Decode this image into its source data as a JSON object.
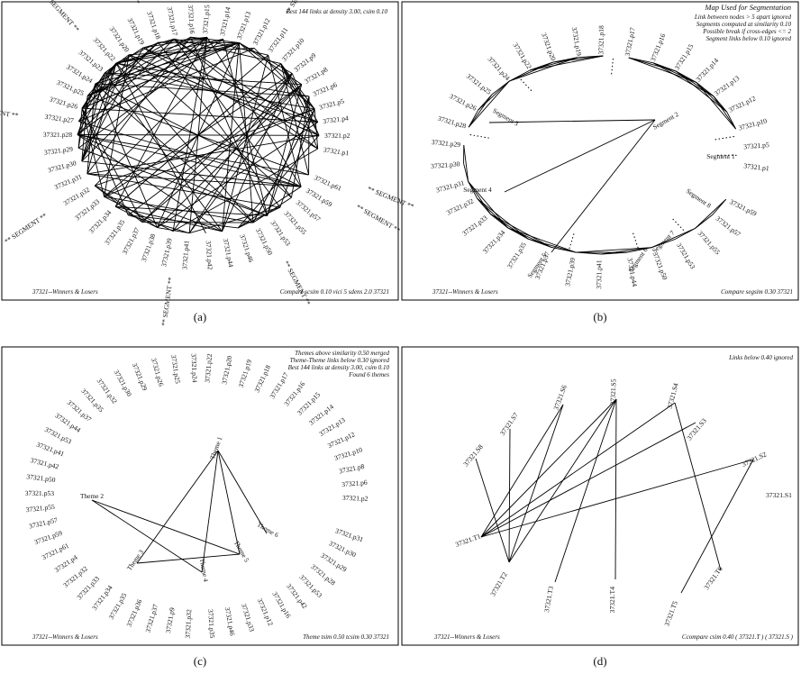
{
  "panels": [
    {
      "id": "a",
      "caption": "(a)",
      "footer_left": "37321--Winners & Losers",
      "footer_right": "Compare scsim 0.10 vici 5 sdens 2.0 37321",
      "notes": [
        "Best 144 links at density 3.00, csim 0.10"
      ],
      "nodes": [
        "37321.p1",
        "37321.p2",
        "37321.p4",
        "37321.p5",
        "37321.p6",
        "37321.p8",
        "37321.p9",
        "37321.p10",
        "37321.p11",
        "37321.p12",
        "37321.p13",
        "37321.p14",
        "37321.p15",
        "37321.p16",
        "37321.p17",
        "37321.p18",
        "37321.p19",
        "37321.p20",
        "37321.p22",
        "37321.p23",
        "37321.p24",
        "37321.p25",
        "37321.p26",
        "37321.p27",
        "37321.p28",
        "37321.p29",
        "37321.p30",
        "37321.p31",
        "37321.p32",
        "37321.p33",
        "37321.p34",
        "37321.p35",
        "37321.p37",
        "37321.p38",
        "37321.p39",
        "37321.p41",
        "37321.p42",
        "37321.p44",
        "37321.p46",
        "37321.p50",
        "37321.p53",
        "37321.p55",
        "37321.p57",
        "37321.p59",
        "37321.p61"
      ],
      "segment_marks": [
        "** SEGMENT **",
        "** SEGMENT **",
        "** SEGMENT **",
        "** SEGMENT **",
        "** SEGMENT **",
        "** SEGMENT **",
        "** SEGMENT **",
        "** SEGMENT **",
        "** SEGMENT **"
      ]
    },
    {
      "id": "b",
      "caption": "(b)",
      "footer_left": "37321--Winners & Losers",
      "footer_right": "Compare segsim 0.30 37321",
      "notes": [
        "Map Used for Segmentation",
        "Link between nodes > 5 apart ignored",
        "Segments computed at similarity 0.10",
        "Possible break if cross-edges <= 2",
        "Segment links below 0.10 ignored"
      ],
      "nodes": [
        "37321.p1",
        "37321.p5",
        "37321.p10",
        "37321.p12",
        "37321.p13",
        "37321.p14",
        "37321.p15",
        "37321.p16",
        "37321.p17",
        "37321.p18",
        "37321.p19",
        "37321.p20",
        "37321.p22",
        "37321.p24",
        "37321.p25",
        "37321.p26",
        "37321.p28",
        "37321.p29",
        "37321.p30",
        "37321.p31",
        "37321.p32",
        "37321.p33",
        "37321.p34",
        "37321.p35",
        "37321.p37",
        "37321.p39",
        "37321.p41",
        "37321.p44",
        "37321.p50",
        "37321.p53",
        "37321.p55",
        "37321.p57",
        "37321.p59"
      ],
      "segments": [
        "Segment 1",
        "Segment 2",
        "Segment 3",
        "Segment 4",
        "Segment 5",
        "Segment 6",
        "Segment 7",
        "Segment 8"
      ]
    },
    {
      "id": "c",
      "caption": "(c)",
      "footer_left": "37321--Winners & Losers",
      "footer_right": "Theme tsim 0.50 tcsim 0.30 37321",
      "notes": [
        "Themes above similarity 0.50 merged",
        "Theme-Theme links below 0.30 ignored",
        "Best 144 links at density 3.00, csim 0.10",
        "Found 6 themes"
      ],
      "nodes": [
        "37321.p2",
        "37321.p6",
        "37321.p8",
        "37321.p10",
        "37321.p12",
        "37321.p13",
        "37321.p14",
        "37321.p15",
        "37321.p16",
        "37321.p17",
        "37321.p18",
        "37321.p19",
        "37321.p20",
        "37321.p22",
        "37321.p24",
        "37321.p25",
        "37321.p26",
        "37321.p29",
        "37321.p30",
        "37321.p32",
        "37321.p35",
        "37321.p37",
        "37321.p44",
        "37321.p53",
        "37321.p41",
        "37321.p42",
        "37321.p50",
        "37321.p53",
        "37321.p55",
        "37321.p57",
        "37321.p59",
        "37321.p61",
        "37321.p4",
        "37321.p32",
        "37321.p33",
        "37321.p34",
        "37321.p35",
        "37321.p36",
        "37321.p37",
        "37321.p9",
        "37321.p32",
        "37321.p35",
        "37321.p46",
        "37321.p33",
        "37321.p12",
        "37321.p16",
        "37321.p42",
        "37321.p53",
        "37321.p28",
        "37321.p29",
        "37321.p30",
        "37321.p31"
      ],
      "themes": [
        "Theme 1",
        "Theme 2",
        "Theme 3",
        "Theme 4",
        "Theme 5",
        "Theme 6"
      ]
    },
    {
      "id": "d",
      "caption": "(d)",
      "footer_left": "37321--Winners & Losers",
      "footer_right": "Ccompare csim 0.40 ( 37321.T ) ( 37321.S )",
      "notes": [
        "Links below 0.40 ignored"
      ],
      "s_nodes": [
        "37321.S1",
        "37321.S2",
        "37321.S3",
        "37321.S4",
        "37321.S5",
        "37321.S6",
        "37321.S7",
        "37321.S8"
      ],
      "t_nodes": [
        "37321.T1",
        "37321.T2",
        "37321.T3",
        "37321.T4",
        "37321.T5",
        "37321.T6"
      ]
    }
  ]
}
